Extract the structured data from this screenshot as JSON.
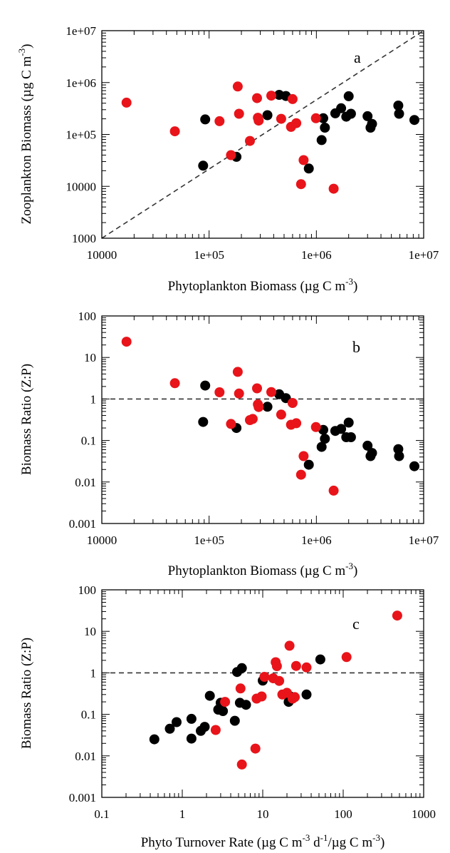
{
  "colors": {
    "series_black": "#000000",
    "series_red": "#e8141a",
    "reference_line": "#333333"
  },
  "chart_data": [
    {
      "type": "scatter",
      "panel_label": "a",
      "xlabel_main": "Phytoplankton Biomass (µg C m",
      "xlabel_sup": "-3",
      "xlabel_end": ")",
      "ylabel_main": "Zooplankton Biomass (µg C m",
      "ylabel_sup": "-3",
      "ylabel_end": ")",
      "xscale": "log",
      "yscale": "log",
      "xlim": [
        10000,
        10000000
      ],
      "ylim": [
        1000,
        10000000
      ],
      "x_tick_labels": [
        "10000",
        "1e+05",
        "1e+06",
        "1e+07"
      ],
      "y_tick_labels": [
        "1000",
        "10000",
        "1e+05",
        "1e+06",
        "1e+07"
      ],
      "reference_line": {
        "type": "1:1",
        "from": [
          10000,
          1000
        ],
        "to": [
          10000000,
          10000000
        ]
      },
      "series": [
        {
          "color": "black",
          "points": [
            [
              88000,
              25000
            ],
            [
              92000,
              195000
            ],
            [
              180000,
              37000
            ],
            [
              350000,
              235000
            ],
            [
              450000,
              580000
            ],
            [
              520000,
              550000
            ],
            [
              850000,
              22000
            ],
            [
              1120000,
              78000
            ],
            [
              1160000,
              205000
            ],
            [
              1200000,
              135000
            ],
            [
              1500000,
              255000
            ],
            [
              1700000,
              320000
            ],
            [
              1900000,
              220000
            ],
            [
              2000000,
              545000
            ],
            [
              2100000,
              250000
            ],
            [
              3000000,
              225000
            ],
            [
              3200000,
              135000
            ],
            [
              3300000,
              160000
            ],
            [
              5800000,
              360000
            ],
            [
              5900000,
              250000
            ],
            [
              8200000,
              190000
            ]
          ]
        },
        {
          "color": "red",
          "points": [
            [
              17000,
              410000
            ],
            [
              48000,
              115000
            ],
            [
              125000,
              180000
            ],
            [
              160000,
              40000
            ],
            [
              185000,
              840000
            ],
            [
              190000,
              250000
            ],
            [
              240000,
              75000
            ],
            [
              280000,
              500000
            ],
            [
              285000,
              210000
            ],
            [
              290000,
              185000
            ],
            [
              380000,
              560000
            ],
            [
              470000,
              200000
            ],
            [
              580000,
              140000
            ],
            [
              600000,
              480000
            ],
            [
              650000,
              165000
            ],
            [
              720000,
              11000
            ],
            [
              760000,
              32000
            ],
            [
              990000,
              205000
            ],
            [
              1450000,
              9000
            ]
          ]
        }
      ]
    },
    {
      "type": "scatter",
      "panel_label": "b",
      "xlabel_main": "Phytoplankton Biomass (µg C m",
      "xlabel_sup": "-3",
      "xlabel_end": ")",
      "ylabel_main": "Biomass Ratio (Z:P)",
      "xscale": "log",
      "yscale": "log",
      "xlim": [
        10000,
        10000000
      ],
      "ylim": [
        0.001,
        100
      ],
      "x_tick_labels": [
        "10000",
        "1e+05",
        "1e+06",
        "1e+07"
      ],
      "y_tick_labels": [
        "0.001",
        "0.01",
        "0.1",
        "1",
        "10",
        "100"
      ],
      "reference_line": {
        "type": "horizontal",
        "y": 1
      },
      "series": [
        {
          "color": "black",
          "points": [
            [
              88000,
              0.28
            ],
            [
              92000,
              2.1
            ],
            [
              180000,
              0.2
            ],
            [
              350000,
              0.65
            ],
            [
              450000,
              1.3
            ],
            [
              520000,
              1.05
            ],
            [
              850000,
              0.026
            ],
            [
              1120000,
              0.07
            ],
            [
              1160000,
              0.18
            ],
            [
              1200000,
              0.11
            ],
            [
              1500000,
              0.17
            ],
            [
              1700000,
              0.19
            ],
            [
              1900000,
              0.12
            ],
            [
              2000000,
              0.27
            ],
            [
              2100000,
              0.12
            ],
            [
              3000000,
              0.075
            ],
            [
              3200000,
              0.042
            ],
            [
              3300000,
              0.05
            ],
            [
              5800000,
              0.062
            ],
            [
              5900000,
              0.042
            ],
            [
              8200000,
              0.024
            ]
          ]
        },
        {
          "color": "red",
          "points": [
            [
              17000,
              24
            ],
            [
              48000,
              2.4
            ],
            [
              125000,
              1.45
            ],
            [
              160000,
              0.25
            ],
            [
              185000,
              4.5
            ],
            [
              190000,
              1.35
            ],
            [
              240000,
              0.31
            ],
            [
              255000,
              0.33
            ],
            [
              280000,
              1.8
            ],
            [
              285000,
              0.74
            ],
            [
              290000,
              0.64
            ],
            [
              380000,
              1.47
            ],
            [
              470000,
              0.42
            ],
            [
              580000,
              0.24
            ],
            [
              600000,
              0.8
            ],
            [
              650000,
              0.26
            ],
            [
              720000,
              0.015
            ],
            [
              760000,
              0.042
            ],
            [
              990000,
              0.21
            ],
            [
              1450000,
              0.0062
            ]
          ]
        }
      ]
    },
    {
      "type": "scatter",
      "panel_label": "c",
      "xlabel_main": "Phyto Turnover Rate (µg C m",
      "xlabel_sup": "-3",
      "xlabel_mid": " d",
      "xlabel_sup2": "-1",
      "xlabel_end": "/µg C m",
      "xlabel_sup3": "-3",
      "xlabel_end2": ")",
      "ylabel_main": "Biomass Ratio (Z:P)",
      "xscale": "log",
      "yscale": "log",
      "xlim": [
        0.1,
        1000
      ],
      "ylim": [
        0.001,
        100
      ],
      "x_tick_labels": [
        "0.1",
        "1",
        "10",
        "100",
        "1000"
      ],
      "y_tick_labels": [
        "0.001",
        "0.01",
        "0.1",
        "1",
        "10",
        "100"
      ],
      "reference_line": {
        "type": "horizontal",
        "y": 1
      },
      "series": [
        {
          "color": "black",
          "points": [
            [
              0.45,
              0.025
            ],
            [
              0.7,
              0.045
            ],
            [
              0.85,
              0.065
            ],
            [
              1.3,
              0.026
            ],
            [
              1.3,
              0.078
            ],
            [
              1.7,
              0.04
            ],
            [
              1.9,
              0.05
            ],
            [
              2.2,
              0.28
            ],
            [
              2.8,
              0.13
            ],
            [
              3.0,
              0.19
            ],
            [
              3.2,
              0.12
            ],
            [
              4.5,
              0.07
            ],
            [
              4.8,
              1.05
            ],
            [
              5.2,
              0.19
            ],
            [
              5.5,
              1.3
            ],
            [
              6.2,
              0.17
            ],
            [
              10,
              0.65
            ],
            [
              21,
              0.2
            ],
            [
              22,
              0.27
            ],
            [
              35,
              0.3
            ],
            [
              52,
              2.1
            ]
          ]
        },
        {
          "color": "red",
          "points": [
            [
              2.6,
              0.042
            ],
            [
              3.4,
              0.2
            ],
            [
              5.3,
              0.42
            ],
            [
              5.5,
              0.0062
            ],
            [
              8.1,
              0.015
            ],
            [
              8.4,
              0.24
            ],
            [
              9.7,
              0.27
            ],
            [
              10.5,
              0.8
            ],
            [
              13.5,
              0.74
            ],
            [
              14.5,
              1.8
            ],
            [
              15,
              1.45
            ],
            [
              16,
              0.64
            ],
            [
              17.5,
              0.3
            ],
            [
              20,
              0.33
            ],
            [
              21.5,
              4.5
            ],
            [
              23.5,
              0.24
            ],
            [
              25,
              0.26
            ],
            [
              26,
              1.47
            ],
            [
              35,
              1.35
            ],
            [
              110,
              2.4
            ],
            [
              470,
              24
            ]
          ]
        }
      ]
    }
  ]
}
